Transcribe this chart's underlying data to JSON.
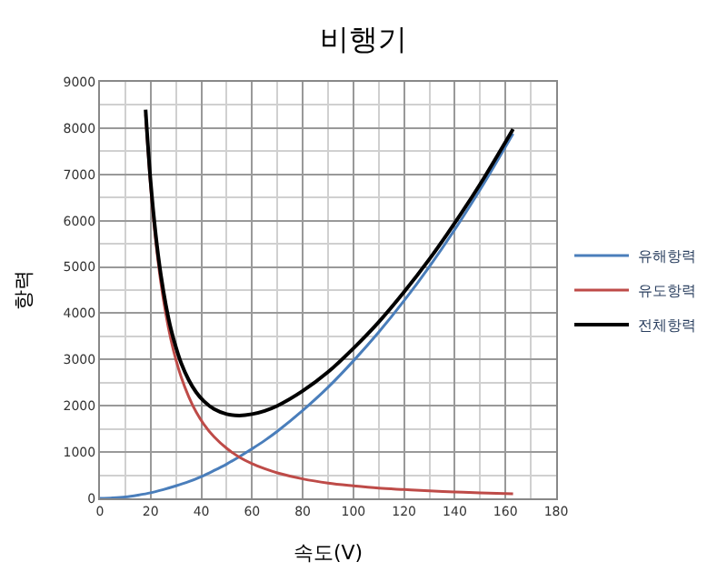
{
  "chart_data": {
    "type": "line",
    "title": "비행기",
    "xlabel": "속도(V)",
    "ylabel": "항력",
    "xlim": [
      0,
      180
    ],
    "xticks": [
      0,
      20,
      40,
      60,
      80,
      100,
      120,
      140,
      160,
      180
    ],
    "ylim": [
      0,
      9000
    ],
    "yticks": [
      0,
      1000,
      2000,
      3000,
      4000,
      5000,
      6000,
      7000,
      8000,
      9000
    ],
    "grid": true,
    "legend": "right",
    "marker": "none",
    "line_style": "solid",
    "series": [
      {
        "name": "유해항력",
        "color": "#4a7ebb",
        "x": [
          0,
          5,
          10,
          15,
          20,
          25,
          30,
          35,
          40,
          45,
          50,
          55,
          60,
          65,
          70,
          80,
          90,
          100,
          110,
          120,
          130,
          140,
          150,
          163
        ],
        "values": [
          0,
          10,
          30,
          70,
          120,
          190,
          270,
          360,
          470,
          600,
          740,
          900,
          1070,
          1250,
          1450,
          1900,
          2400,
          2970,
          3590,
          4270,
          5010,
          5810,
          6670,
          7880
        ]
      },
      {
        "name": "유도항력",
        "color": "#be4b48",
        "x": [
          18,
          20,
          22,
          24,
          26,
          28,
          30,
          32,
          35,
          38,
          41,
          45,
          50,
          55,
          60,
          65,
          70,
          80,
          90,
          100,
          110,
          120,
          130,
          140,
          150,
          163
        ],
        "values": [
          8300,
          6730,
          5560,
          4670,
          3980,
          3430,
          2990,
          2630,
          2200,
          1860,
          1600,
          1330,
          1080,
          890,
          750,
          640,
          550,
          420,
          330,
          270,
          220,
          190,
          160,
          140,
          120,
          100
        ]
      },
      {
        "name": "전체항력",
        "color": "#000000",
        "x": [
          18,
          20,
          22,
          24,
          26,
          28,
          30,
          32,
          35,
          38,
          41,
          45,
          50,
          55,
          60,
          65,
          70,
          80,
          90,
          100,
          110,
          120,
          130,
          140,
          150,
          163
        ],
        "values": [
          8400,
          6840,
          5700,
          4840,
          4180,
          3660,
          3260,
          2930,
          2560,
          2290,
          2100,
          1930,
          1820,
          1790,
          1820,
          1890,
          2000,
          2320,
          2730,
          3240,
          3810,
          4460,
          5170,
          5950,
          6790,
          7980
        ]
      }
    ]
  }
}
